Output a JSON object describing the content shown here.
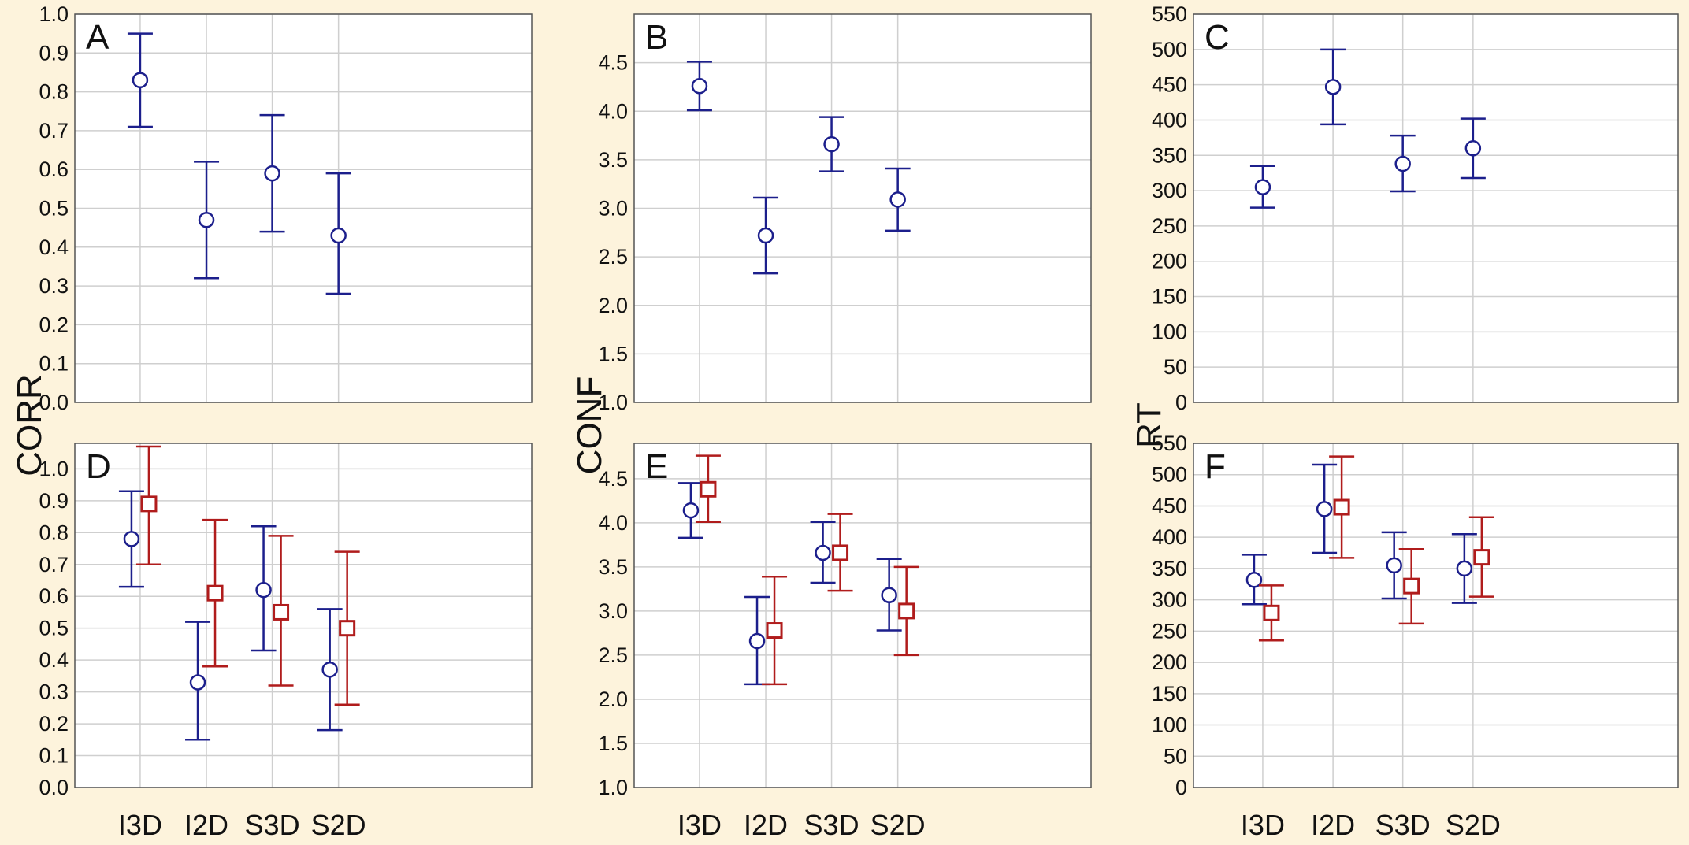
{
  "colors": {
    "background": "#fdf3dc",
    "series_a": "#1c1f8c",
    "series_b": "#b01c1c",
    "grid": "#cfcfcf",
    "frame": "#555555"
  },
  "chart_data": [
    {
      "id": "A",
      "type": "scatter",
      "letter": "A",
      "ylabel": "CORR",
      "ylim": [
        0,
        1.0
      ],
      "yticks": [
        0,
        0.1,
        0.2,
        0.3,
        0.4,
        0.5,
        0.6,
        0.7,
        0.8,
        0.9,
        1.0
      ],
      "tick_decimals": 1,
      "categories": [
        "I3D",
        "I2D",
        "S3D",
        "S2D"
      ],
      "show_category_labels": false,
      "grid": true,
      "series": [
        {
          "marker": "circle",
          "color": "#1c1f8c",
          "values": [
            0.83,
            0.47,
            0.59,
            0.43
          ],
          "upper": [
            0.95,
            0.62,
            0.74,
            0.59
          ],
          "lower": [
            0.71,
            0.32,
            0.44,
            0.28
          ]
        }
      ]
    },
    {
      "id": "B",
      "type": "scatter",
      "letter": "B",
      "ylabel": "CONF",
      "ylim": [
        1.0,
        5.0
      ],
      "yticks": [
        1.0,
        1.5,
        2.0,
        2.5,
        3.0,
        3.5,
        4.0,
        4.5
      ],
      "tick_decimals": 1,
      "categories": [
        "I3D",
        "I2D",
        "S3D",
        "S2D"
      ],
      "show_category_labels": false,
      "grid": true,
      "series": [
        {
          "marker": "circle",
          "color": "#1c1f8c",
          "values": [
            4.26,
            2.72,
            3.66,
            3.09
          ],
          "upper": [
            4.51,
            3.11,
            3.94,
            3.41
          ],
          "lower": [
            4.01,
            2.33,
            3.38,
            2.77
          ]
        }
      ]
    },
    {
      "id": "C",
      "type": "scatter",
      "letter": "C",
      "ylabel": "RT",
      "ylim": [
        0,
        550
      ],
      "yticks": [
        0,
        50,
        100,
        150,
        200,
        250,
        300,
        350,
        400,
        450,
        500,
        550
      ],
      "tick_decimals": 0,
      "categories": [
        "I3D",
        "I2D",
        "S3D",
        "S2D"
      ],
      "show_category_labels": false,
      "grid": true,
      "series": [
        {
          "marker": "circle",
          "color": "#1c1f8c",
          "values": [
            305,
            447,
            338,
            360
          ],
          "upper": [
            335,
            500,
            378,
            402
          ],
          "lower": [
            276,
            394,
            299,
            318
          ]
        }
      ]
    },
    {
      "id": "D",
      "type": "scatter",
      "letter": "D",
      "ylabel": "CORR",
      "ylim": [
        0,
        1.08
      ],
      "yticks": [
        0,
        0.1,
        0.2,
        0.3,
        0.4,
        0.5,
        0.6,
        0.7,
        0.8,
        0.9,
        1.0
      ],
      "tick_decimals": 1,
      "categories": [
        "I3D",
        "I2D",
        "S3D",
        "S2D"
      ],
      "show_category_labels": true,
      "grid": true,
      "series": [
        {
          "marker": "circle",
          "color": "#1c1f8c",
          "values": [
            0.78,
            0.33,
            0.62,
            0.37
          ],
          "upper": [
            0.93,
            0.52,
            0.82,
            0.56
          ],
          "lower": [
            0.63,
            0.15,
            0.43,
            0.18
          ]
        },
        {
          "marker": "square",
          "color": "#b01c1c",
          "values": [
            0.89,
            0.61,
            0.55,
            0.5
          ],
          "upper": [
            1.07,
            0.84,
            0.79,
            0.74
          ],
          "lower": [
            0.7,
            0.38,
            0.32,
            0.26
          ]
        }
      ]
    },
    {
      "id": "E",
      "type": "scatter",
      "letter": "E",
      "ylabel": "CONF",
      "ylim": [
        1.0,
        4.9
      ],
      "yticks": [
        1.0,
        1.5,
        2.0,
        2.5,
        3.0,
        3.5,
        4.0,
        4.5
      ],
      "tick_decimals": 1,
      "categories": [
        "I3D",
        "I2D",
        "S3D",
        "S2D"
      ],
      "show_category_labels": true,
      "grid": true,
      "series": [
        {
          "marker": "circle",
          "color": "#1c1f8c",
          "values": [
            4.14,
            2.66,
            3.66,
            3.18
          ],
          "upper": [
            4.45,
            3.16,
            4.01,
            3.59
          ],
          "lower": [
            3.83,
            2.17,
            3.32,
            2.78
          ]
        },
        {
          "marker": "square",
          "color": "#b01c1c",
          "values": [
            4.38,
            2.78,
            3.66,
            3.0
          ],
          "upper": [
            4.76,
            3.39,
            4.1,
            3.5
          ],
          "lower": [
            4.01,
            2.17,
            3.23,
            2.5
          ]
        }
      ]
    },
    {
      "id": "F",
      "type": "scatter",
      "letter": "F",
      "ylabel": "RT",
      "ylim": [
        0,
        550
      ],
      "yticks": [
        0,
        50,
        100,
        150,
        200,
        250,
        300,
        350,
        400,
        450,
        500,
        550
      ],
      "tick_decimals": 0,
      "categories": [
        "I3D",
        "I2D",
        "S3D",
        "S2D"
      ],
      "show_category_labels": true,
      "grid": true,
      "series": [
        {
          "marker": "circle",
          "color": "#1c1f8c",
          "values": [
            332,
            445,
            355,
            350
          ],
          "upper": [
            372,
            516,
            408,
            405
          ],
          "lower": [
            293,
            375,
            302,
            295
          ]
        },
        {
          "marker": "square",
          "color": "#b01c1c",
          "values": [
            279,
            448,
            322,
            368
          ],
          "upper": [
            323,
            529,
            381,
            432
          ],
          "lower": [
            235,
            367,
            262,
            305
          ]
        }
      ]
    }
  ]
}
